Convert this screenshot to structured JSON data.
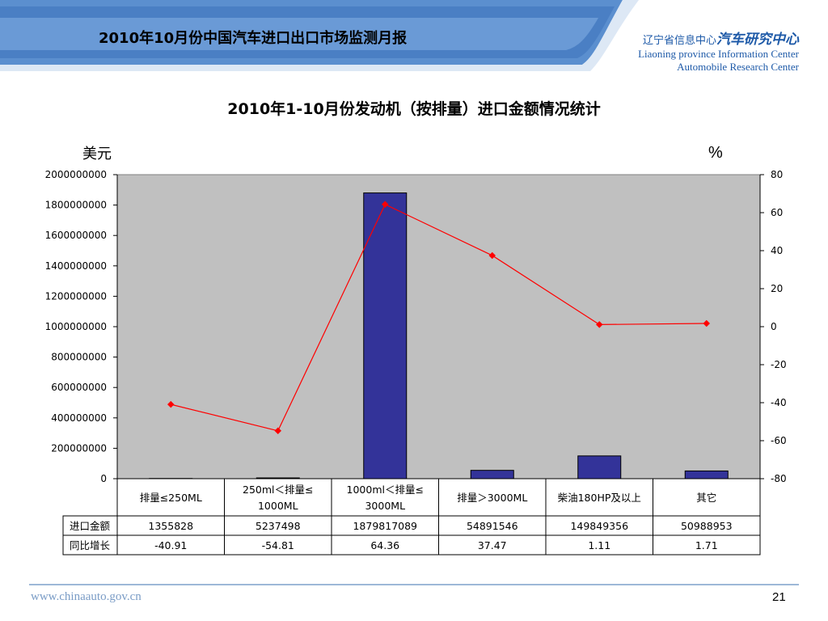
{
  "header": {
    "report_title": "2010年10月份中国汽车进口出口市场监测月报",
    "org_cn_small": "辽宁省信息中心",
    "org_cn_big": "汽车研究中心",
    "org_en_line1": "Liaoning province Information Center",
    "org_en_line2": "Automobile Research Center"
  },
  "chart_data": {
    "type": "bar",
    "title": "2010年1-10月份发动机（按排量）进口金额情况统计",
    "ylabel": "美元",
    "y2label": "%",
    "categories": [
      "排量≤250ML",
      "250ml＜排量≤1000ML",
      "1000ml＜排量≤3000ML",
      "排量＞3000ML",
      "柴油180HP及以上",
      "其它"
    ],
    "category_lines": [
      [
        "排量≤250ML"
      ],
      [
        "250ml＜排量≤",
        "1000ML"
      ],
      [
        "1000ml＜排量≤",
        "3000ML"
      ],
      [
        "排量＞3000ML"
      ],
      [
        "柴油180HP及以上"
      ],
      [
        "其它"
      ]
    ],
    "series": [
      {
        "name": "进口金额",
        "type": "bar",
        "axis": "left",
        "values": [
          1355828,
          5237498,
          1879817089,
          54891546,
          149849356,
          50988953
        ],
        "values_text": [
          "1355828",
          "5237498",
          "1879817089",
          "54891546",
          "149849356",
          "50988953"
        ]
      },
      {
        "name": "同比增长",
        "type": "line",
        "axis": "right",
        "values": [
          -40.91,
          -54.81,
          64.36,
          37.47,
          1.11,
          1.71
        ],
        "values_text": [
          "-40.91",
          "-54.81",
          "64.36",
          "37.47",
          "1.11",
          "1.71"
        ]
      }
    ],
    "ylim": [
      0,
      2000000000
    ],
    "y2lim": [
      -80,
      80
    ],
    "yticks": [
      "0",
      "200000000",
      "400000000",
      "600000000",
      "800000000",
      "1000000000",
      "1200000000",
      "1400000000",
      "1600000000",
      "1800000000",
      "2000000000"
    ],
    "y2ticks": [
      "-80",
      "-60",
      "-40",
      "-20",
      "0",
      "20",
      "40",
      "60",
      "80"
    ],
    "grid": false,
    "legend": "table-below",
    "colors": {
      "bar": "#333399",
      "line": "#ff0000",
      "plot_bg": "#c0c0c0"
    }
  },
  "footer": {
    "url": "www.chinaauto.gov.cn",
    "page_number": "21"
  }
}
